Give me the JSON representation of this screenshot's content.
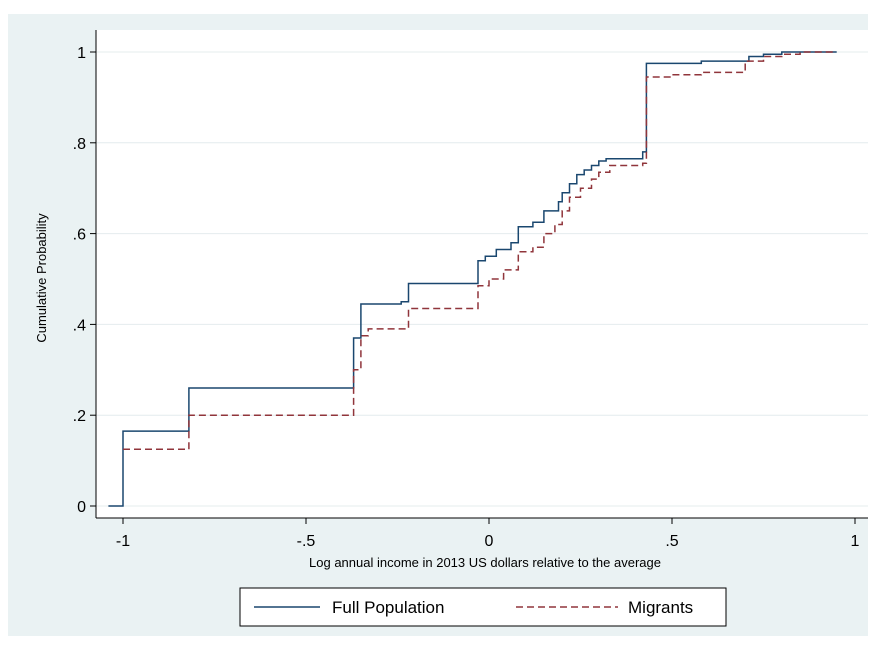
{
  "chart_data": {
    "type": "line",
    "step": true,
    "title": "",
    "xlabel": "Log annual income in 2013 US dollars relative to the average",
    "ylabel": "Cumulative Probability",
    "xlim": [
      -1.05,
      1.05
    ],
    "ylim": [
      0,
      1
    ],
    "x_ticks": [
      -1,
      -0.5,
      0,
      0.5,
      1
    ],
    "x_tick_labels": [
      "-1",
      "-.5",
      "0",
      ".5",
      "1"
    ],
    "y_ticks": [
      0,
      0.2,
      0.4,
      0.6,
      0.8,
      1
    ],
    "y_tick_labels": [
      "0",
      ".2",
      ".4",
      ".6",
      ".8",
      "1"
    ],
    "grid": true,
    "legend": "bottom",
    "series": [
      {
        "name": "Full Population",
        "color": "#1a476f",
        "dash": "solid",
        "points": [
          [
            -1.04,
            0
          ],
          [
            -1.0,
            0.165
          ],
          [
            -0.82,
            0.26
          ],
          [
            -0.37,
            0.37
          ],
          [
            -0.35,
            0.445
          ],
          [
            -0.24,
            0.45
          ],
          [
            -0.22,
            0.49
          ],
          [
            -0.03,
            0.54
          ],
          [
            -0.01,
            0.55
          ],
          [
            0.02,
            0.565
          ],
          [
            0.06,
            0.58
          ],
          [
            0.08,
            0.615
          ],
          [
            0.12,
            0.625
          ],
          [
            0.15,
            0.65
          ],
          [
            0.19,
            0.67
          ],
          [
            0.2,
            0.69
          ],
          [
            0.22,
            0.71
          ],
          [
            0.24,
            0.73
          ],
          [
            0.26,
            0.74
          ],
          [
            0.28,
            0.75
          ],
          [
            0.3,
            0.76
          ],
          [
            0.32,
            0.765
          ],
          [
            0.42,
            0.78
          ],
          [
            0.43,
            0.975
          ],
          [
            0.58,
            0.98
          ],
          [
            0.71,
            0.99
          ],
          [
            0.75,
            0.995
          ],
          [
            0.8,
            1.0
          ],
          [
            0.95,
            1.0
          ]
        ]
      },
      {
        "name": "Migrants",
        "color": "#90353b",
        "dash": "dashed",
        "points": [
          [
            -1.0,
            0.125
          ],
          [
            -0.82,
            0.2
          ],
          [
            -0.37,
            0.3
          ],
          [
            -0.35,
            0.375
          ],
          [
            -0.33,
            0.39
          ],
          [
            -0.25,
            0.39
          ],
          [
            -0.22,
            0.435
          ],
          [
            -0.03,
            0.485
          ],
          [
            0.0,
            0.5
          ],
          [
            0.04,
            0.52
          ],
          [
            0.08,
            0.56
          ],
          [
            0.12,
            0.57
          ],
          [
            0.15,
            0.6
          ],
          [
            0.18,
            0.62
          ],
          [
            0.2,
            0.65
          ],
          [
            0.22,
            0.68
          ],
          [
            0.25,
            0.7
          ],
          [
            0.28,
            0.72
          ],
          [
            0.3,
            0.735
          ],
          [
            0.33,
            0.75
          ],
          [
            0.42,
            0.755
          ],
          [
            0.43,
            0.945
          ],
          [
            0.5,
            0.95
          ],
          [
            0.58,
            0.955
          ],
          [
            0.7,
            0.98
          ],
          [
            0.75,
            0.99
          ],
          [
            0.8,
            0.995
          ],
          [
            0.85,
            1.0
          ],
          [
            0.95,
            1.0
          ]
        ]
      }
    ]
  }
}
